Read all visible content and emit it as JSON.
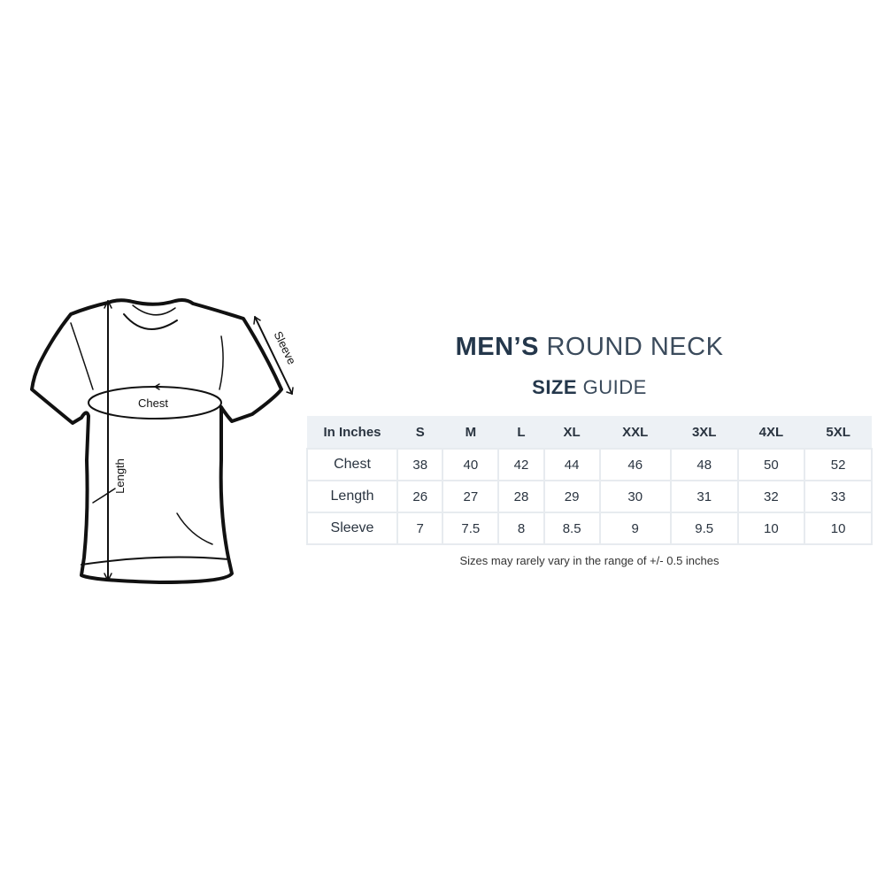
{
  "title": {
    "bold": "MEN’S",
    "regular": "ROUND NECK"
  },
  "subtitle": {
    "bold": "SIZE",
    "regular": "GUIDE"
  },
  "diagram": {
    "chest_label": "Chest",
    "length_label": "Length",
    "sleeve_label": "Sleeve"
  },
  "table": {
    "headers": [
      "In Inches",
      "S",
      "M",
      "L",
      "XL",
      "XXL",
      "3XL",
      "4XL",
      "5XL"
    ],
    "rows": [
      [
        "Chest",
        "38",
        "40",
        "42",
        "44",
        "46",
        "48",
        "50",
        "52"
      ],
      [
        "Length",
        "26",
        "27",
        "28",
        "29",
        "30",
        "31",
        "32",
        "33"
      ],
      [
        "Sleeve",
        "7",
        "7.5",
        "8",
        "8.5",
        "9",
        "9.5",
        "10",
        "10"
      ]
    ]
  },
  "note": "Sizes may rarely vary in the range of +/- 0.5 inches",
  "colors": {
    "title": "#24374b",
    "header_bg": "#edf1f5",
    "border": "#e7ebef"
  }
}
